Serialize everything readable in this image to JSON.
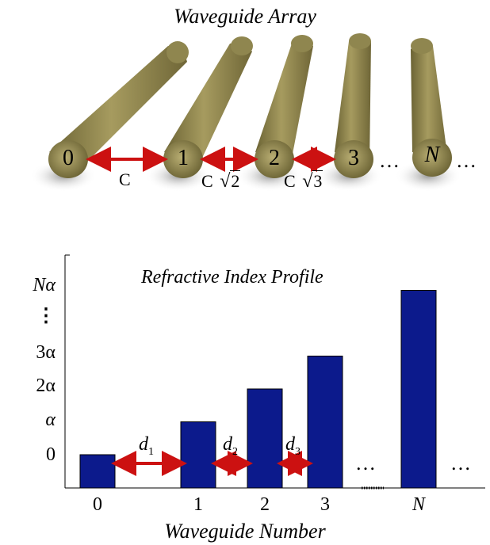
{
  "array": {
    "title": "Waveguide Array",
    "waveguides": [
      {
        "label": "0",
        "italic": false
      },
      {
        "label": "1",
        "italic": false
      },
      {
        "label": "2",
        "italic": false
      },
      {
        "label": "3",
        "italic": false
      },
      {
        "label": "N",
        "italic": true
      }
    ],
    "couplings": [
      "C",
      "C",
      "C"
    ],
    "coupling_roots": [
      "",
      "2",
      "3"
    ],
    "ellipsis": "…",
    "colors": {
      "rod": "#8a7f4a",
      "arrow": "#cc1111"
    }
  },
  "chart_data": {
    "type": "bar",
    "title": "Refractive Index Profile",
    "xlabel": "Waveguide Number",
    "ylabel": "",
    "categories": [
      "0",
      "1",
      "2",
      "3",
      "N"
    ],
    "values": [
      0,
      1,
      2,
      3,
      5
    ],
    "y_tick_labels": [
      "0",
      "α",
      "2α",
      "3α",
      "⋮",
      "Nα"
    ],
    "distance_labels": [
      {
        "symbol": "d",
        "sub": "1"
      },
      {
        "symbol": "d",
        "sub": "2"
      },
      {
        "symbol": "d",
        "sub": "3"
      }
    ],
    "ellipsis": "…",
    "colors": {
      "bar": "#0c1a8c",
      "arrow": "#cc1111"
    }
  }
}
